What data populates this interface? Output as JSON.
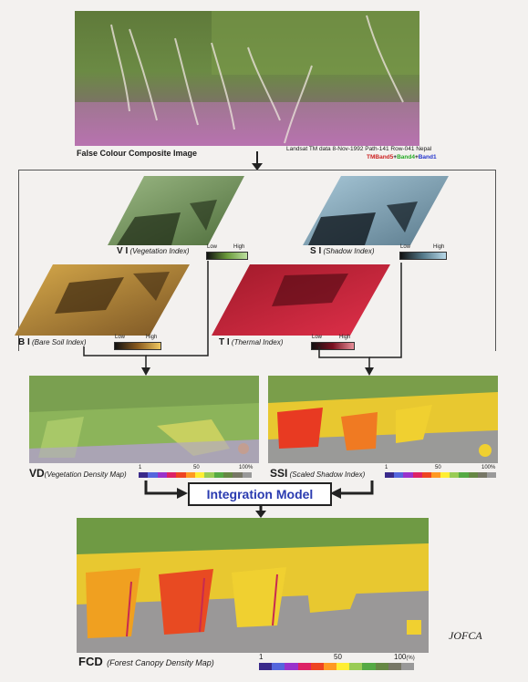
{
  "top": {
    "caption": "False Colour Composite Image",
    "meta": "Landsat TM data 8-Nov-1992 Path-141 Row-041 Nepal",
    "bands": {
      "tm": "TM",
      "b5": "Band5",
      "plus": "+",
      "b4": "Band4",
      "b1": "Band1"
    }
  },
  "indices": {
    "vi": {
      "abbr": "V I",
      "name": "(Vegetation Index)"
    },
    "si": {
      "abbr": "S I",
      "name": "(Shadow Index)"
    },
    "bi": {
      "abbr": "B I",
      "name": "(Bare Soil Index)"
    },
    "ti": {
      "abbr": "T I",
      "name": "(Thermal Index)"
    },
    "low": "Low",
    "high": "High"
  },
  "maps": {
    "vd": {
      "abbr": "VD",
      "name": "(Vegetation Density Map)"
    },
    "ssi": {
      "abbr": "SSI",
      "name": "(Scaled Shadow Index)"
    },
    "fcd": {
      "abbr": "FCD",
      "name": "(Forest Canopy Density Map)"
    },
    "scale_min": "1",
    "scale_mid": "50",
    "scale_max": "100",
    "scale_unit": "(%)",
    "scale_max_small": "100%"
  },
  "integration": "Integration Model",
  "credit": "JOFCA",
  "colors": {
    "scale": [
      "#3a2a8a",
      "#5566dd",
      "#9933cc",
      "#dd2266",
      "#ee4422",
      "#ff9922",
      "#ffee33",
      "#99cc55",
      "#55aa44",
      "#668844",
      "#777766",
      "#999999"
    ]
  }
}
